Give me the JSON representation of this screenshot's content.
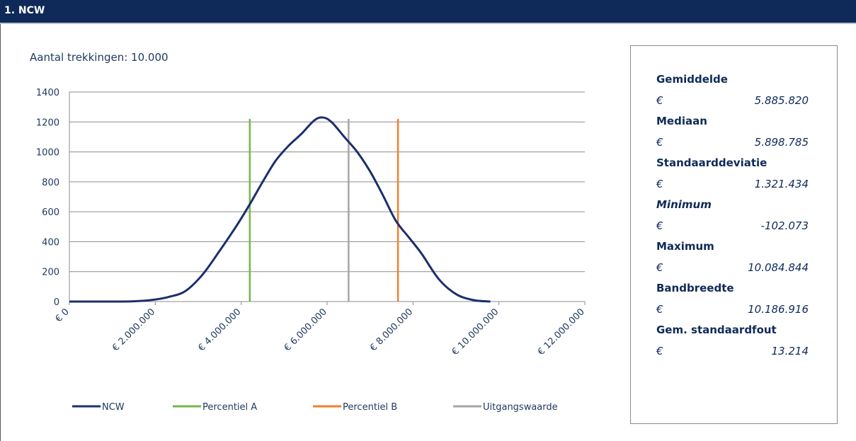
{
  "header": {
    "title": "1. NCW"
  },
  "colors": {
    "header_bg": "#0f2a58",
    "ncw": "#1b2f6e",
    "percentiel_a": "#77b54a",
    "percentiel_b": "#f07f2e",
    "uitgangswaarde": "#a6a6a6",
    "grid": "#8c8c8c",
    "axis_text": "#1f3a60"
  },
  "chart_data": {
    "type": "line",
    "title": "Aantal trekkingen: 10.000",
    "xlabel": "",
    "ylabel": "",
    "xlim": [
      0,
      12000000
    ],
    "ylim": [
      0,
      1400
    ],
    "grid": true,
    "legend_position": "bottom",
    "x_ticks": [
      0,
      2000000,
      4000000,
      6000000,
      8000000,
      10000000,
      12000000
    ],
    "x_tick_labels": [
      "€ 0",
      "€ 2.000.000",
      "€ 4.000.000",
      "€ 6.000.000",
      "€ 8.000.000",
      "€ 10.000.000",
      "€ 12.000.000"
    ],
    "y_ticks": [
      0,
      200,
      400,
      600,
      800,
      1000,
      1200,
      1400
    ],
    "y_tick_labels": [
      "0",
      "200",
      "400",
      "600",
      "800",
      "1000",
      "1200",
      "1400"
    ],
    "series": [
      {
        "name": "NCW",
        "kind": "curve",
        "x": [
          0,
          500000,
          1000000,
          1500000,
          1900000,
          2300000,
          2700000,
          3100000,
          3500000,
          3900000,
          4200000,
          4500000,
          4800000,
          5100000,
          5400000,
          5700000,
          5900000,
          6100000,
          6400000,
          6700000,
          7000000,
          7300000,
          7600000,
          7900000,
          8200000,
          8600000,
          9000000,
          9400000,
          9800000
        ],
        "y": [
          0,
          0,
          0,
          2,
          10,
          30,
          70,
          180,
          340,
          510,
          650,
          800,
          940,
          1040,
          1120,
          1210,
          1230,
          1200,
          1100,
          1000,
          870,
          710,
          540,
          430,
          320,
          150,
          50,
          10,
          0
        ]
      },
      {
        "name": "Percentiel A",
        "kind": "vline",
        "x": 4200000,
        "y": [
          0,
          1220
        ]
      },
      {
        "name": "Percentiel B",
        "kind": "vline",
        "x": 7650000,
        "y": [
          0,
          1220
        ]
      },
      {
        "name": "Uitgangswaarde",
        "kind": "vline",
        "x": 6500000,
        "y": [
          0,
          1220
        ]
      }
    ]
  },
  "stats": [
    {
      "label": "Gemiddelde",
      "currency": "€",
      "value": "5.885.820"
    },
    {
      "label": "Mediaan",
      "currency": "€",
      "value": "5.898.785"
    },
    {
      "label": "Standaarddeviatie",
      "currency": "€",
      "value": "1.321.434"
    },
    {
      "label": "Minimum",
      "currency": "€",
      "value": "-102.073"
    },
    {
      "label": "Maximum",
      "currency": "€",
      "value": "10.084.844"
    },
    {
      "label": "Bandbreedte",
      "currency": "€",
      "value": "10.186.916"
    },
    {
      "label": "Gem. standaardfout",
      "currency": "€",
      "value": "13.214"
    }
  ]
}
